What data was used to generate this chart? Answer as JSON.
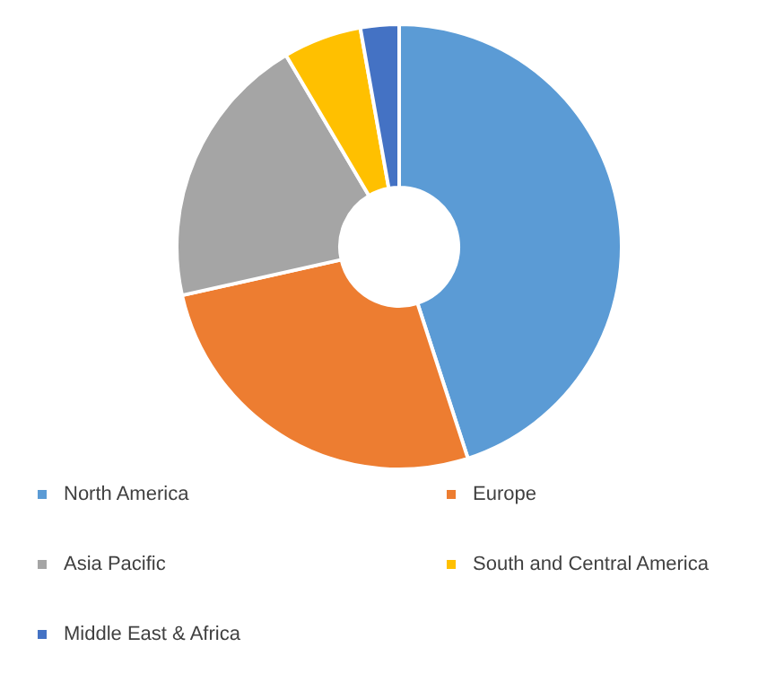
{
  "chart_data": {
    "type": "donut",
    "categories": [
      "North America",
      "Europe",
      "Asia Pacific",
      "South and Central America",
      "Middle East & Africa"
    ],
    "values": [
      45,
      26.5,
      20,
      5.7,
      2.8
    ],
    "colors": [
      "#5b9bd5",
      "#ed7d31",
      "#a5a5a5",
      "#ffc000",
      "#4472c4"
    ],
    "legend": "bottom"
  }
}
